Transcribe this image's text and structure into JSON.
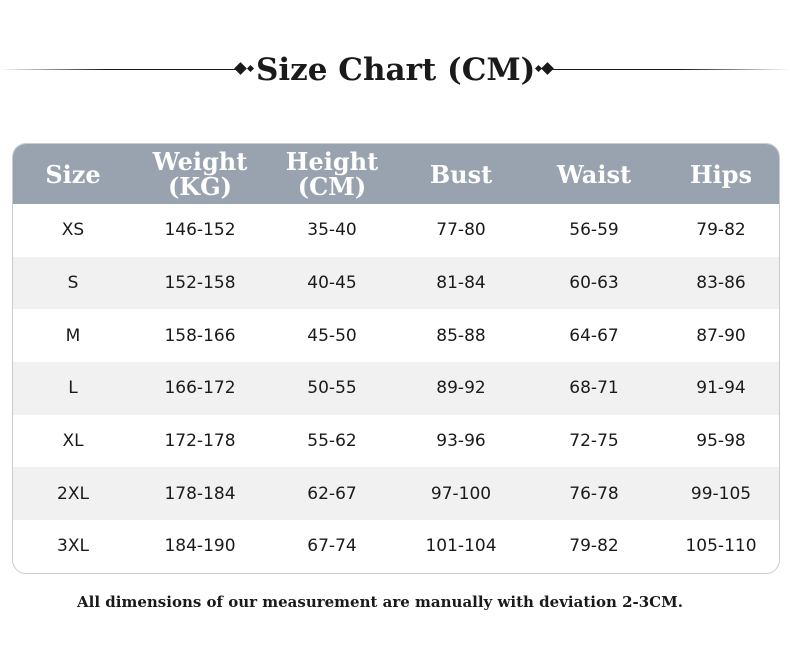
{
  "title": "Size Chart (CM)",
  "headers": [
    {
      "line1": "Size",
      "line2": ""
    },
    {
      "line1": "Weight",
      "line2": "(KG)"
    },
    {
      "line1": "Height",
      "line2": "(CM)"
    },
    {
      "line1": "Bust",
      "line2": ""
    },
    {
      "line1": "Waist",
      "line2": ""
    },
    {
      "line1": "Hips",
      "line2": ""
    }
  ],
  "rows": [
    [
      "XS",
      "146-152",
      "35-40",
      "77-80",
      "56-59",
      "79-82"
    ],
    [
      "S",
      "152-158",
      "40-45",
      "81-84",
      "60-63",
      "83-86"
    ],
    [
      "M",
      "158-166",
      "45-50",
      "85-88",
      "64-67",
      "87-90"
    ],
    [
      "L",
      "166-172",
      "50-55",
      "89-92",
      "68-71",
      "91-94"
    ],
    [
      "XL",
      "172-178",
      "55-62",
      "93-96",
      "72-75",
      "95-98"
    ],
    [
      "2XL",
      "178-184",
      "62-67",
      "97-100",
      "76-78",
      "99-105"
    ],
    [
      "3XL",
      "184-190",
      "67-74",
      "101-104",
      "79-82",
      "105-110"
    ]
  ],
  "footnote": "All dimensions of our measurement are manually with deviation 2-3CM.",
  "colors": {
    "header_bg": "#98a3af",
    "header_text": "#ffffff",
    "stripe": "#f1f1f1",
    "text": "#1a1a1a"
  }
}
